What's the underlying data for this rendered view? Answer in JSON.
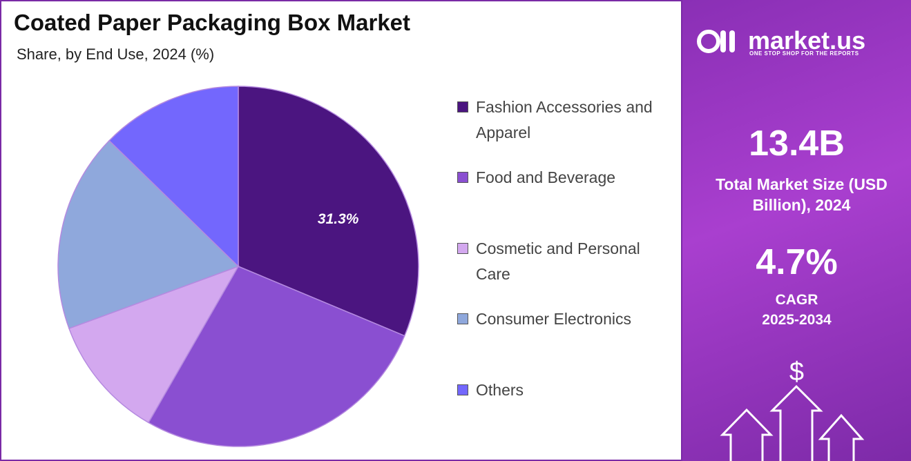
{
  "chart_data": {
    "type": "pie",
    "title": "Coated Paper Packaging Box Market",
    "subtitle": "Share, by End Use, 2024 (%)",
    "categories": [
      "Fashion Accessories and Apparel",
      "Food and Beverage",
      "Cosmetic and Personal Care",
      "Consumer Electronics",
      "Others"
    ],
    "values": [
      31.3,
      27.0,
      11.1,
      17.9,
      12.7
    ],
    "value_labels": [
      "31.3%",
      null,
      null,
      null,
      null
    ],
    "colors": [
      "#4b1580",
      "#8a4fd1",
      "#d3a8ef",
      "#8fa8dc",
      "#7367fd"
    ]
  },
  "panel": {
    "brand": "market.us",
    "tagline": "ONE STOP SHOP FOR THE REPORTS",
    "market_size": "13.4B",
    "market_size_label": "Total Market Size (USD Billion), 2024",
    "cagr": "4.7%",
    "cagr_label": "CAGR",
    "cagr_period": "2025-2034",
    "icon": "$"
  }
}
